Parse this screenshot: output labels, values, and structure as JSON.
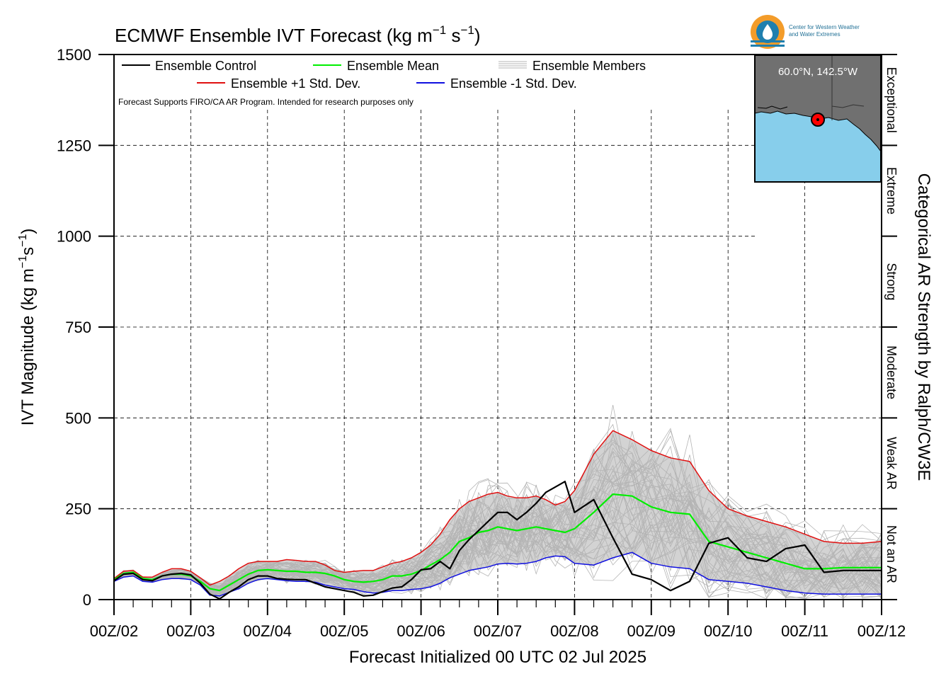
{
  "title_main": "ECMWF Ensemble IVT Forecast (kg m",
  "title_sup1": "−1",
  "title_mid": " s",
  "title_sup2": "−1",
  "title_end": ")",
  "ylabel_main": "IVT Magnitude (kg m",
  "ylabel_sup1": "−1",
  "ylabel_mid": "s",
  "ylabel_sup2": "−1",
  "ylabel_end": ")",
  "xlabel": "Forecast Initialized 00 UTC 02 Jul 2025",
  "right_label": "Categorical AR Strength by Ralph/CW3E",
  "disclaimer": "Forecast Supports FIRO/CA AR Program. Intended for research purposes only",
  "logo_line1": "Center for Western Weather",
  "logo_line2": "and Water Extremes",
  "inset_label": "60.0°N, 142.5°W",
  "legend": {
    "control": "Ensemble Control",
    "mean": "Ensemble Mean",
    "members": "Ensemble Members",
    "plus": "Ensemble +1 Std. Dev.",
    "minus": "Ensemble -1 Std. Dev."
  },
  "colors": {
    "control": "#000000",
    "mean": "#00ee00",
    "plus": "#e01010",
    "minus": "#1010e0",
    "members": "#b4b4b4",
    "band": "#d3d3d3",
    "ocean": "#87ceeb",
    "land": "#707070"
  },
  "categories": [
    {
      "label": "Not an AR",
      "from": 0,
      "to": 250
    },
    {
      "label": "Weak AR",
      "from": 250,
      "to": 500
    },
    {
      "label": "Moderate",
      "from": 500,
      "to": 750
    },
    {
      "label": "Strong",
      "from": 750,
      "to": 1000
    },
    {
      "label": "Extreme",
      "from": 1000,
      "to": 1250
    },
    {
      "label": "Exceptional",
      "from": 1250,
      "to": 1500
    }
  ],
  "chart_data": {
    "type": "line",
    "xlim": [
      0,
      240
    ],
    "ylim": [
      0,
      1500
    ],
    "x_tick_values": [
      0,
      24,
      48,
      72,
      96,
      120,
      144,
      168,
      192,
      216,
      240
    ],
    "x_tick_labels": [
      "00Z/02",
      "00Z/03",
      "00Z/04",
      "00Z/05",
      "00Z/06",
      "00Z/07",
      "00Z/08",
      "00Z/09",
      "00Z/10",
      "00Z/11",
      "00Z/12"
    ],
    "y_ticks": [
      0,
      250,
      500,
      750,
      1000,
      1250,
      1500
    ],
    "x_hours": [
      0,
      3,
      6,
      9,
      12,
      15,
      18,
      21,
      24,
      27,
      30,
      33,
      36,
      39,
      42,
      45,
      48,
      51,
      54,
      57,
      60,
      63,
      66,
      69,
      72,
      75,
      78,
      81,
      84,
      87,
      90,
      93,
      96,
      99,
      102,
      105,
      108,
      111,
      114,
      117,
      120,
      123,
      126,
      129,
      132,
      135,
      138,
      141,
      144,
      150,
      156,
      162,
      168,
      174,
      180,
      186,
      192,
      198,
      204,
      210,
      216,
      222,
      228,
      234,
      240
    ],
    "series": [
      {
        "name": "Ensemble Control",
        "key": "control",
        "values": [
          52,
          70,
          72,
          55,
          52,
          65,
          70,
          72,
          68,
          45,
          15,
          2,
          20,
          35,
          55,
          65,
          65,
          58,
          56,
          55,
          55,
          45,
          35,
          30,
          25,
          20,
          10,
          12,
          22,
          32,
          35,
          55,
          82,
          85,
          105,
          85,
          135,
          165,
          190,
          215,
          240,
          240,
          220,
          240,
          265,
          295,
          310,
          325,
          240,
          275,
          170,
          70,
          55,
          25,
          50,
          155,
          170,
          115,
          105,
          140,
          150,
          75,
          80,
          80,
          80
        ]
      },
      {
        "name": "Ensemble Mean",
        "key": "mean",
        "values": [
          55,
          72,
          75,
          58,
          55,
          65,
          70,
          70,
          65,
          50,
          30,
          25,
          40,
          55,
          70,
          80,
          82,
          80,
          78,
          78,
          75,
          75,
          72,
          65,
          55,
          50,
          48,
          50,
          55,
          65,
          65,
          70,
          80,
          95,
          110,
          130,
          160,
          170,
          185,
          190,
          200,
          195,
          190,
          195,
          200,
          195,
          190,
          185,
          195,
          240,
          290,
          285,
          255,
          240,
          235,
          160,
          145,
          130,
          115,
          100,
          85,
          85,
          88,
          88,
          88
        ]
      },
      {
        "name": "Ensemble +1 Std. Dev.",
        "key": "plus",
        "values": [
          58,
          78,
          80,
          62,
          62,
          75,
          85,
          85,
          78,
          60,
          40,
          50,
          65,
          85,
          100,
          105,
          105,
          105,
          110,
          108,
          105,
          105,
          95,
          80,
          75,
          78,
          80,
          80,
          90,
          100,
          105,
          115,
          130,
          150,
          180,
          220,
          250,
          270,
          280,
          290,
          295,
          285,
          280,
          280,
          285,
          275,
          260,
          270,
          300,
          400,
          465,
          440,
          410,
          390,
          380,
          300,
          250,
          230,
          215,
          200,
          180,
          160,
          155,
          155,
          160
        ]
      },
      {
        "name": "Ensemble -1 Std. Dev.",
        "key": "minus",
        "values": [
          50,
          62,
          65,
          50,
          48,
          55,
          58,
          58,
          55,
          40,
          12,
          10,
          20,
          30,
          45,
          55,
          58,
          55,
          52,
          50,
          50,
          48,
          40,
          35,
          30,
          28,
          22,
          18,
          20,
          25,
          25,
          28,
          30,
          35,
          45,
          60,
          70,
          80,
          85,
          90,
          98,
          100,
          98,
          100,
          105,
          115,
          120,
          118,
          100,
          95,
          115,
          130,
          100,
          90,
          85,
          55,
          50,
          45,
          35,
          25,
          18,
          15,
          15,
          15,
          15
        ]
      }
    ]
  }
}
